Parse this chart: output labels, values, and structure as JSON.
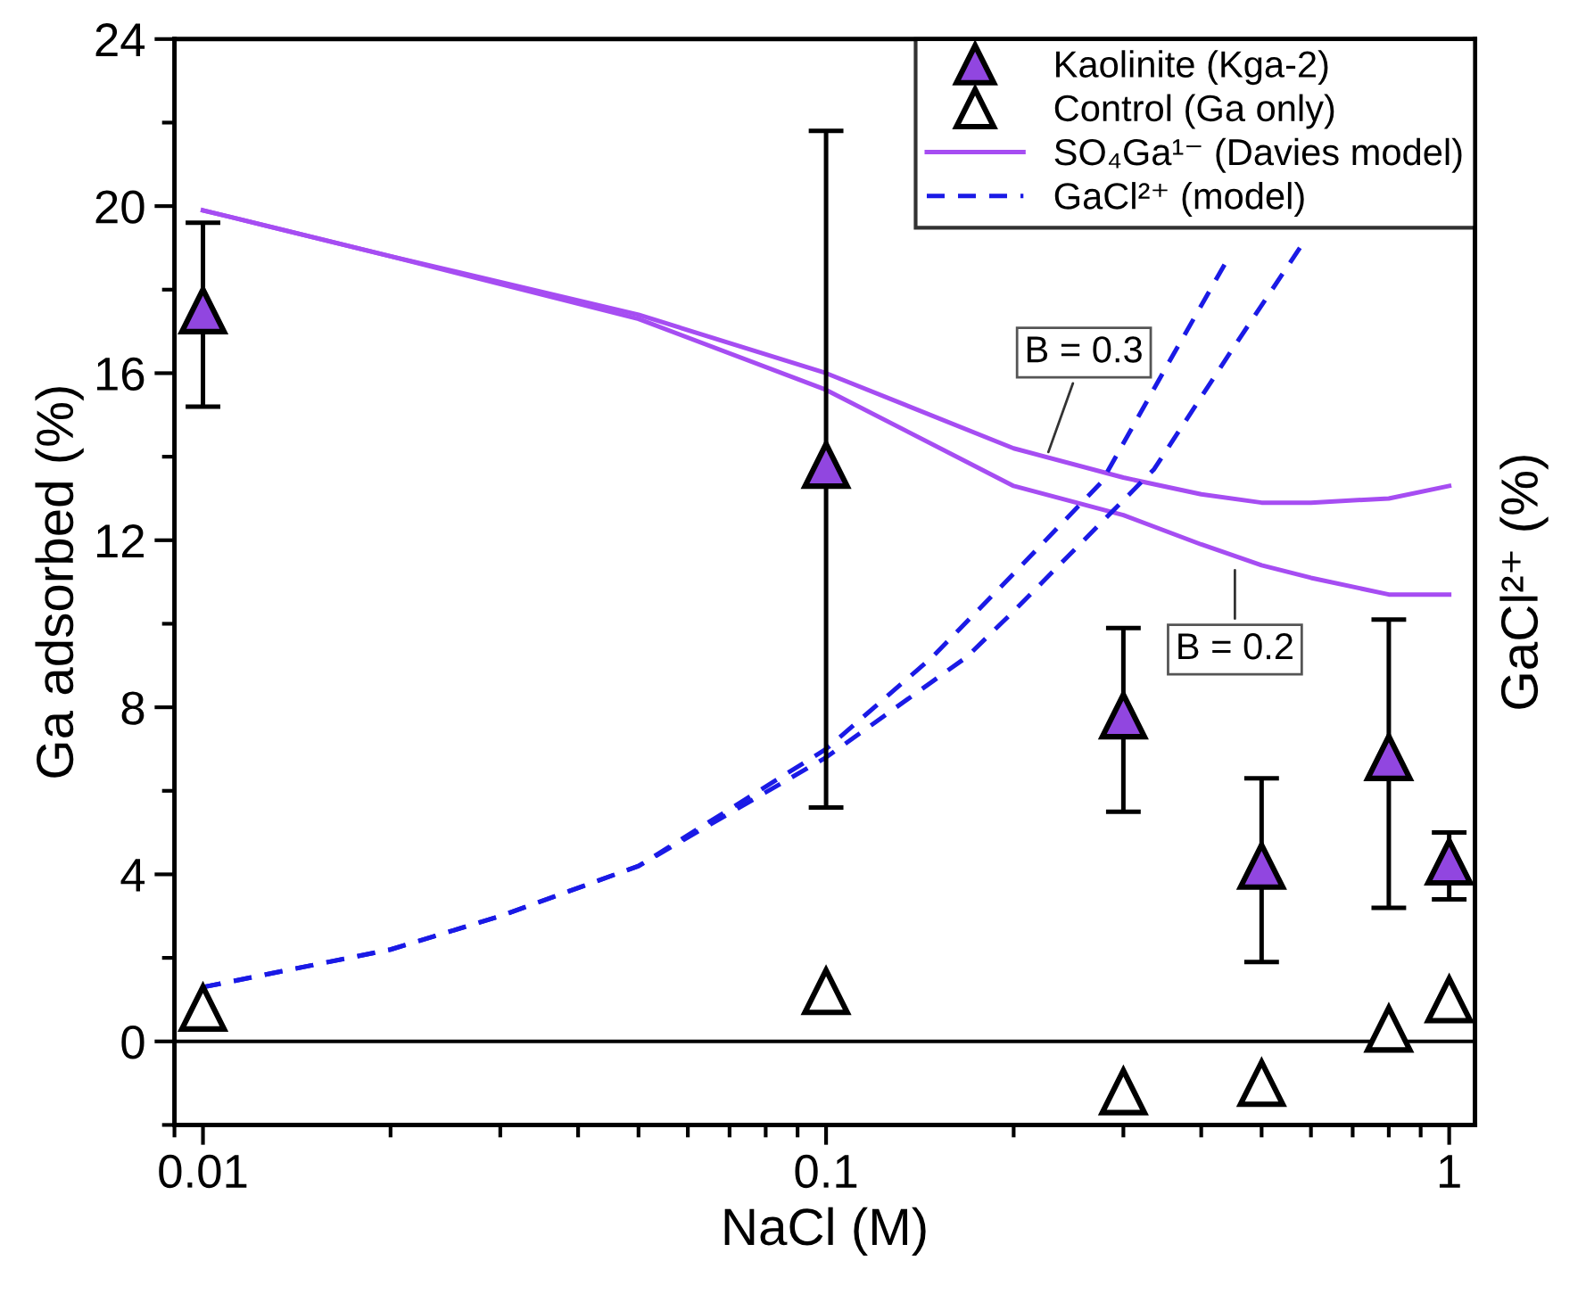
{
  "chart_data": {
    "type": "scatter",
    "xlabel": "NaCl (M)",
    "ylabel": "Ga adsorbed (%)",
    "y2label": "GaCl²⁺ (%)",
    "log": "x",
    "xlim": [
      0.009,
      1.1
    ],
    "xticks": [
      0.01,
      0.1,
      1
    ],
    "ylim": [
      -2,
      24
    ],
    "yticks": [
      0,
      4,
      8,
      12,
      16,
      20,
      24
    ],
    "grid": false,
    "legend": "top right",
    "series": [
      {
        "name": "Kaolinite (Kga-2)",
        "type": "scatter",
        "marker": "triangle",
        "color": "#9146e0",
        "x": [
          0.01,
          0.1,
          0.3,
          0.5,
          0.8,
          1
        ],
        "values": [
          17.5,
          13.8,
          7.8,
          4.2,
          6.8,
          4.3
        ],
        "errors": [
          [
            15.2,
            19.6
          ],
          [
            5.6,
            21.8
          ],
          [
            5.5,
            9.9
          ],
          [
            1.9,
            6.3
          ],
          [
            3.2,
            10.1
          ],
          [
            3.4,
            5.0
          ]
        ]
      },
      {
        "name": "Control (Ga only)",
        "marker": "triangle",
        "color": "#ffffff",
        "x": [
          0.01,
          0.1,
          0.3,
          0.5,
          0.8,
          1
        ],
        "values": [
          0.8,
          1.2,
          -1.2,
          -1.0,
          0.3,
          1.0
        ]
      },
      {
        "name": "SO₄Ga¹⁻ (Davies model)",
        "type": "line",
        "line_style": "solid",
        "color": "#a64df2",
        "x": [
          0.01,
          0.02,
          0.05,
          0.1,
          0.2,
          0.3,
          0.4,
          0.5,
          0.6,
          0.8,
          1
        ],
        "values": [
          19.9,
          18.8,
          17.4,
          16.0,
          14.2,
          13.5,
          13.1,
          12.9,
          12.9,
          13.0,
          13.3
        ]
      },
      {
        "type": "line",
        "line_style": "solid",
        "color": "#a64df2",
        "x": [
          0.01,
          0.02,
          0.05,
          0.1,
          0.2,
          0.3,
          0.4,
          0.5,
          0.6,
          0.8,
          1
        ],
        "values": [
          19.9,
          18.8,
          17.3,
          15.6,
          13.3,
          12.6,
          11.9,
          11.4,
          11.1,
          10.7,
          10.7
        ]
      },
      {
        "name": "GaCl²⁺ (model)",
        "type": "line",
        "line_style": "dashed",
        "color": "#1a1ae6",
        "x": [
          0.01,
          0.02,
          0.03,
          0.05,
          0.1,
          0.148,
          0.2,
          0.277,
          0.35,
          0.436
        ],
        "values": [
          1.3,
          2.2,
          3.0,
          4.2,
          7.0,
          9.2,
          11.2,
          13.4,
          16.1,
          18.6
        ]
      },
      {
        "type": "line",
        "line_style": "dashed",
        "color": "#1a1ae6",
        "x": [
          0.01,
          0.02,
          0.03,
          0.05,
          0.1,
          0.168,
          0.2,
          0.336,
          0.45,
          0.576
        ],
        "values": [
          1.3,
          2.2,
          3.0,
          4.2,
          6.8,
          9.2,
          10.3,
          13.7,
          16.6,
          19.0
        ]
      }
    ],
    "ref_lines": [
      {
        "axis": "y",
        "value": 0,
        "color": "#000000"
      }
    ],
    "annotations": [
      {
        "text": "B = 0.3",
        "x": 0.226,
        "y": 14.0
      },
      {
        "text": "B = 0.2",
        "x": 0.453,
        "y": 11.4
      }
    ]
  }
}
